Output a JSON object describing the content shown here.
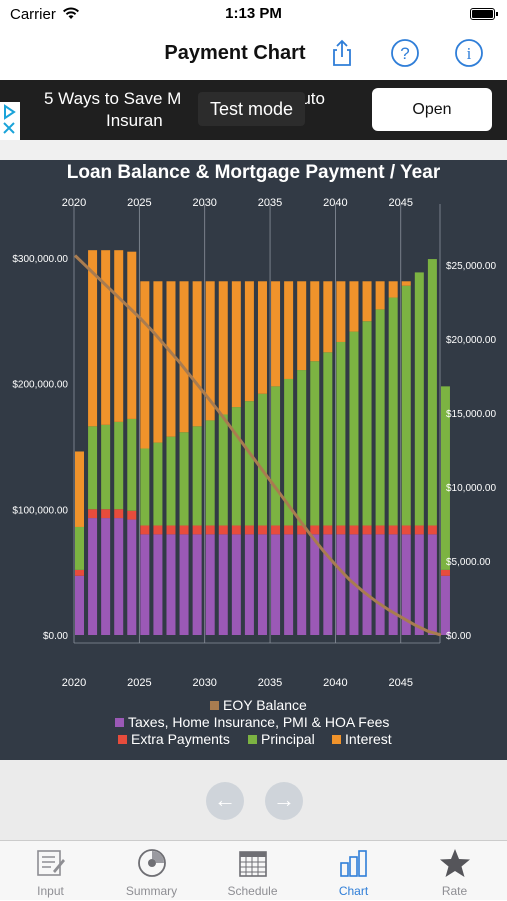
{
  "status_bar": {
    "carrier": "Carrier",
    "time": "1:13 PM"
  },
  "nav": {
    "title": "Payment Chart",
    "icons": [
      "share-icon",
      "help-icon",
      "info-icon"
    ]
  },
  "ad": {
    "headline": "5 Ways to Save Mo... Insurance ...to",
    "headline_left": "5 Ways to Save M",
    "headline_right": "uto",
    "headline_line2": "Insuran",
    "test_mode": "Test mode",
    "open_label": "Open"
  },
  "chart_title": "Loan Balance & Mortgage Payment / Year",
  "chart_data": {
    "type": "bar",
    "title": "Loan Balance & Mortgage Payment / Year",
    "x_ticks": [
      "2020",
      "2025",
      "2030",
      "2035",
      "2040",
      "2045"
    ],
    "left_axis_ticks": [
      "$0.00",
      "$100,000.00",
      "$200,000.00",
      "$300,000.00"
    ],
    "right_axis_ticks": [
      "$0.00",
      "$5,000.00",
      "$10,000.00",
      "$15,000.00",
      "$20,000.00",
      "$25,000.00"
    ],
    "left_ylim": [
      0,
      300000
    ],
    "right_ylim": [
      0,
      25000
    ],
    "stacked": true,
    "colors": {
      "taxes": "#9b59b6",
      "extra": "#e74c3c",
      "principal": "#7cb342",
      "interest": "#f0932b",
      "balance": "#a97c50"
    },
    "years": [
      2020,
      2021,
      2022,
      2023,
      2024,
      2025,
      2026,
      2027,
      2028,
      2029,
      2030,
      2031,
      2032,
      2033,
      2034,
      2035,
      2036,
      2037,
      2038,
      2039,
      2040,
      2041,
      2042,
      2043,
      2044,
      2045,
      2046,
      2047,
      2048
    ],
    "series": [
      {
        "name": "Taxes, Home Insurance, PMI & HOA Fees",
        "values": [
          4000,
          7900,
          7900,
          7900,
          7800,
          6800,
          6800,
          6800,
          6800,
          6800,
          6800,
          6800,
          6800,
          6800,
          6800,
          6800,
          6800,
          6800,
          6800,
          6800,
          6800,
          6800,
          6800,
          6800,
          6800,
          6800,
          6800,
          6800,
          4000
        ]
      },
      {
        "name": "Extra Payments",
        "values": [
          400,
          600,
          600,
          600,
          600,
          600,
          600,
          600,
          600,
          600,
          600,
          600,
          600,
          600,
          600,
          600,
          600,
          600,
          600,
          600,
          600,
          600,
          600,
          600,
          600,
          600,
          600,
          600,
          400
        ]
      },
      {
        "name": "Principal",
        "values": [
          2900,
          5600,
          5700,
          5900,
          6200,
          5200,
          5600,
          6000,
          6300,
          6700,
          7100,
          7500,
          8000,
          8400,
          8900,
          9400,
          9900,
          10500,
          11100,
          11700,
          12400,
          13100,
          13800,
          14600,
          15400,
          16200,
          17100,
          18000,
          12400
        ]
      },
      {
        "name": "Interest",
        "values": [
          5100,
          11900,
          11800,
          11600,
          11300,
          11300,
          10900,
          10500,
          10200,
          9800,
          9400,
          9000,
          8500,
          8100,
          7600,
          7100,
          6600,
          6000,
          5400,
          4800,
          4100,
          3400,
          2700,
          1900,
          1100,
          300,
          0,
          0,
          0
        ]
      }
    ],
    "balance": {
      "name": "EOY Balance",
      "values": [
        302000,
        292000,
        282000,
        272000,
        262000,
        252000,
        241000,
        229000,
        217000,
        204000,
        191000,
        178000,
        164000,
        150000,
        136000,
        122000,
        108000,
        94000,
        80000,
        67000,
        55000,
        44000,
        35000,
        27000,
        20000,
        14000,
        8000,
        3000,
        0
      ]
    },
    "legend": [
      "EOY Balance",
      "Taxes, Home Insurance, PMI & HOA Fees",
      "Extra Payments",
      "Principal",
      "Interest"
    ]
  },
  "pager": {
    "prev": "←",
    "next": "→"
  },
  "tabs": [
    {
      "label": "Input",
      "icon": "input-form-icon"
    },
    {
      "label": "Summary",
      "icon": "summary-disc-icon"
    },
    {
      "label": "Schedule",
      "icon": "calendar-icon"
    },
    {
      "label": "Chart",
      "icon": "bar-chart-icon",
      "active": true
    },
    {
      "label": "Rate",
      "icon": "star-icon"
    }
  ]
}
